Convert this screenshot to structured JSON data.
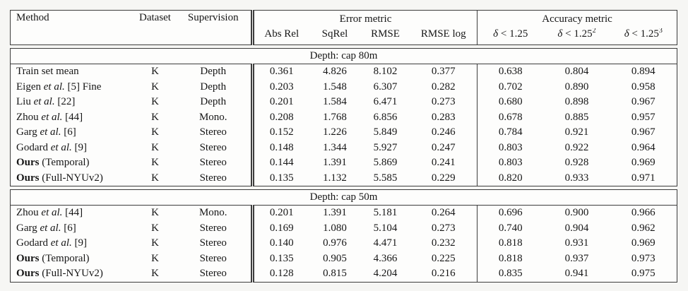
{
  "colors": {
    "border": "#3c3c3c",
    "text": "#161616",
    "table_background": "#fdfdfc",
    "page_background": "#f6f6f4"
  },
  "table": {
    "header": {
      "method": "Method",
      "dataset": "Dataset",
      "supervision": "Supervision",
      "error_group": "Error metric",
      "error_cols": [
        "Abs Rel",
        "SqRel",
        "RMSE",
        "RMSE log"
      ],
      "accuracy_group": "Accuracy metric",
      "accuracy_cols": [
        {
          "sym": "δ",
          "cmp": " < 1.25",
          "sup": ""
        },
        {
          "sym": "δ",
          "cmp": " < 1.25",
          "sup": "2"
        },
        {
          "sym": "δ",
          "cmp": " < 1.25",
          "sup": "3"
        }
      ]
    },
    "sections": [
      {
        "title": "Depth: cap 80m",
        "rows": [
          {
            "method": [
              [
                "Train set mean",
                "n"
              ]
            ],
            "dataset": "K",
            "supervision": "Depth",
            "error": [
              "0.361",
              "4.826",
              "8.102",
              "0.377"
            ],
            "accuracy": [
              "0.638",
              "0.804",
              "0.894"
            ]
          },
          {
            "method": [
              [
                "Eigen ",
                "n"
              ],
              [
                "et al.",
                "i"
              ],
              [
                " [5] Fine",
                "n"
              ]
            ],
            "dataset": "K",
            "supervision": "Depth",
            "error": [
              "0.203",
              "1.548",
              "6.307",
              "0.282"
            ],
            "accuracy": [
              "0.702",
              "0.890",
              "0.958"
            ]
          },
          {
            "method": [
              [
                "Liu ",
                "n"
              ],
              [
                "et al.",
                "i"
              ],
              [
                " [22]",
                "n"
              ]
            ],
            "dataset": "K",
            "supervision": "Depth",
            "error": [
              "0.201",
              "1.584",
              "6.471",
              "0.273"
            ],
            "accuracy": [
              "0.680",
              "0.898",
              "0.967"
            ]
          },
          {
            "method": [
              [
                "Zhou ",
                "n"
              ],
              [
                "et al.",
                "i"
              ],
              [
                " [44]",
                "n"
              ]
            ],
            "dataset": "K",
            "supervision": "Mono.",
            "error": [
              "0.208",
              "1.768",
              "6.856",
              "0.283"
            ],
            "accuracy": [
              "0.678",
              "0.885",
              "0.957"
            ]
          },
          {
            "method": [
              [
                "Garg ",
                "n"
              ],
              [
                "et al.",
                "i"
              ],
              [
                " [6]",
                "n"
              ]
            ],
            "dataset": "K",
            "supervision": "Stereo",
            "error": [
              "0.152",
              "1.226",
              "5.849",
              "0.246"
            ],
            "accuracy": [
              "0.784",
              "0.921",
              "0.967"
            ]
          },
          {
            "method": [
              [
                "Godard ",
                "n"
              ],
              [
                "et al.",
                "i"
              ],
              [
                " [9]",
                "n"
              ]
            ],
            "dataset": "K",
            "supervision": "Stereo",
            "error": [
              "0.148",
              "1.344",
              "5.927",
              "0.247"
            ],
            "accuracy": [
              "0.803",
              "0.922",
              "0.964"
            ]
          },
          {
            "method": [
              [
                "Ours",
                "b"
              ],
              [
                " (Temporal)",
                "n"
              ]
            ],
            "dataset": "K",
            "supervision": "Stereo",
            "error": [
              "0.144",
              "1.391",
              "5.869",
              "0.241"
            ],
            "accuracy": [
              "0.803",
              "0.928",
              "0.969"
            ]
          },
          {
            "method": [
              [
                "Ours",
                "b"
              ],
              [
                " (Full-NYUv2)",
                "n"
              ]
            ],
            "dataset": "K",
            "supervision": "Stereo",
            "error": [
              "0.135",
              "1.132",
              "5.585",
              "0.229"
            ],
            "accuracy": [
              "0.820",
              "0.933",
              "0.971"
            ]
          }
        ]
      },
      {
        "title": "Depth: cap 50m",
        "rows": [
          {
            "method": [
              [
                "Zhou ",
                "n"
              ],
              [
                "et al.",
                "i"
              ],
              [
                " [44]",
                "n"
              ]
            ],
            "dataset": "K",
            "supervision": "Mono.",
            "error": [
              "0.201",
              "1.391",
              "5.181",
              "0.264"
            ],
            "accuracy": [
              "0.696",
              "0.900",
              "0.966"
            ]
          },
          {
            "method": [
              [
                "Garg ",
                "n"
              ],
              [
                "et al.",
                "i"
              ],
              [
                " [6]",
                "n"
              ]
            ],
            "dataset": "K",
            "supervision": "Stereo",
            "error": [
              "0.169",
              "1.080",
              "5.104",
              "0.273"
            ],
            "accuracy": [
              "0.740",
              "0.904",
              "0.962"
            ]
          },
          {
            "method": [
              [
                "Godard ",
                "n"
              ],
              [
                "et al.",
                "i"
              ],
              [
                " [9]",
                "n"
              ]
            ],
            "dataset": "K",
            "supervision": "Stereo",
            "error": [
              "0.140",
              "0.976",
              "4.471",
              "0.232"
            ],
            "accuracy": [
              "0.818",
              "0.931",
              "0.969"
            ]
          },
          {
            "method": [
              [
                "Ours",
                "b"
              ],
              [
                " (Temporal)",
                "n"
              ]
            ],
            "dataset": "K",
            "supervision": "Stereo",
            "error": [
              "0.135",
              "0.905",
              "4.366",
              "0.225"
            ],
            "accuracy": [
              "0.818",
              "0.937",
              "0.973"
            ]
          },
          {
            "method": [
              [
                "Ours",
                "b"
              ],
              [
                " (Full-NYUv2)",
                "n"
              ]
            ],
            "dataset": "K",
            "supervision": "Stereo",
            "error": [
              "0.128",
              "0.815",
              "4.204",
              "0.216"
            ],
            "accuracy": [
              "0.835",
              "0.941",
              "0.975"
            ]
          }
        ]
      }
    ]
  }
}
